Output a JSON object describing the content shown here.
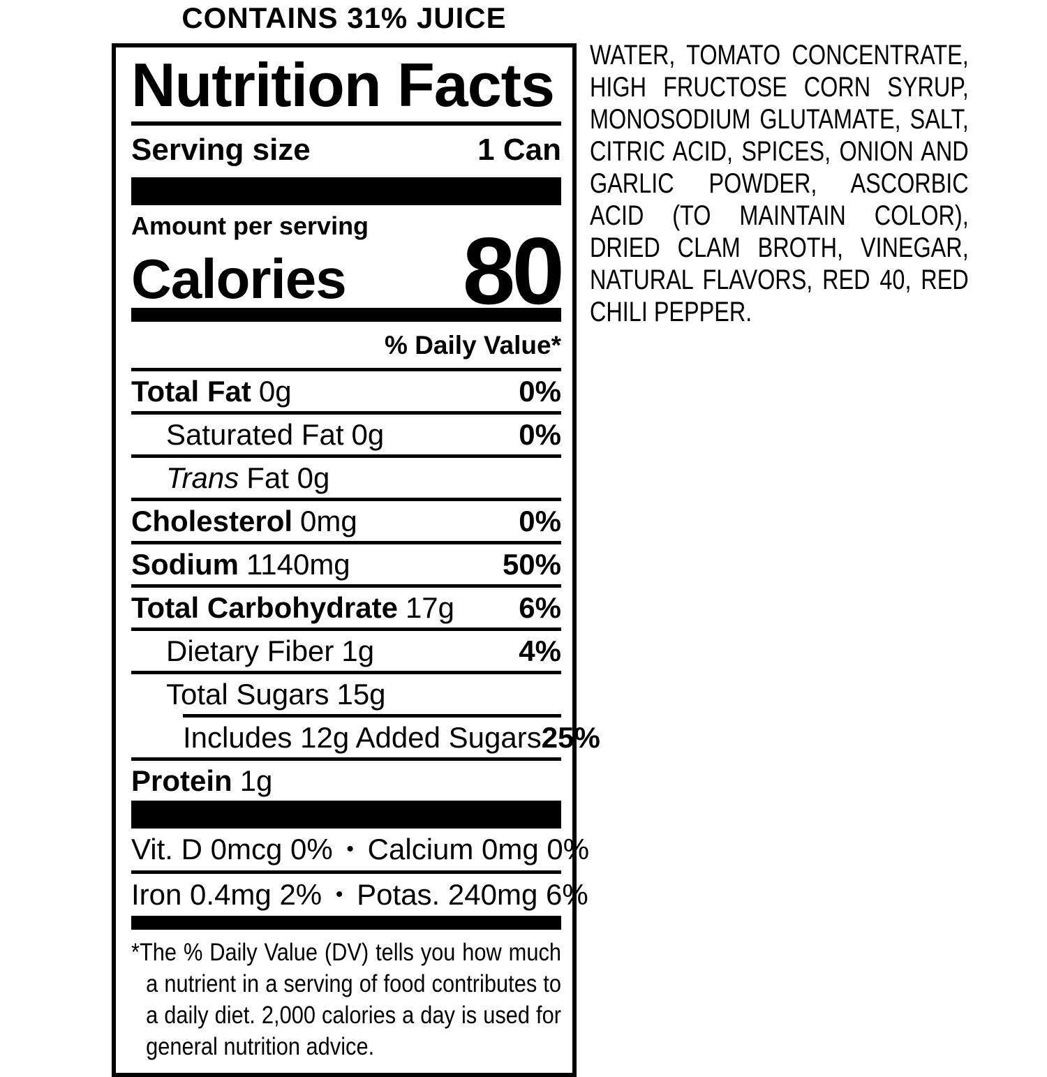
{
  "banner": "CONTAINS 31% JUICE",
  "label": {
    "title": "Nutrition Facts",
    "serving": {
      "label": "Serving size",
      "value": "1 Can"
    },
    "amount_per_serving": "Amount per serving",
    "calories_label": "Calories",
    "calories_value": "80",
    "daily_value_header": "% Daily Value*",
    "rows": [
      {
        "name": "Total Fat",
        "amount": "0g",
        "dv": "0%"
      },
      {
        "name": "Saturated Fat",
        "amount": "0g",
        "dv": "0%"
      },
      {
        "name": "Trans",
        "amount": "Fat 0g",
        "dv": ""
      },
      {
        "name": "Cholesterol",
        "amount": "0mg",
        "dv": "0%"
      },
      {
        "name": "Sodium",
        "amount": "1140mg",
        "dv": "50%"
      },
      {
        "name": "Total Carbohydrate",
        "amount": "17g",
        "dv": "6%"
      },
      {
        "name": "Dietary Fiber",
        "amount": "1g",
        "dv": "4%"
      },
      {
        "name": "Total Sugars",
        "amount": "15g",
        "dv": ""
      },
      {
        "name": "Includes 12g Added Sugars",
        "amount": "",
        "dv": "25%"
      },
      {
        "name": "Protein",
        "amount": "1g",
        "dv": ""
      }
    ],
    "vitamins": [
      {
        "left": "Vit. D 0mcg 0%",
        "bullet": "•",
        "right": "Calcium 0mg 0%"
      },
      {
        "left": "Iron 0.4mg 2%",
        "bullet": "•",
        "right": "Potas. 240mg 6%"
      }
    ],
    "footnote": "*The % Daily Value (DV) tells you how much a nutrient in a serving of food contributes to a daily diet. 2,000 calories a day is used for general nutrition advice."
  },
  "ingredients": "WATER, TOMATO CONCENTRATE, HIGH FRUCTOSE CORN SYRUP, MONOSODIUM GLUTAMATE, SALT, CITRIC ACID, SPICES, ONION AND GARLIC POWDER, ASCORBIC ACID (TO MAINTAIN COLOR), DRIED CLAM BROTH, VINEGAR, NATURAL FLAVORS, RED 40, RED CHILI PEPPER."
}
